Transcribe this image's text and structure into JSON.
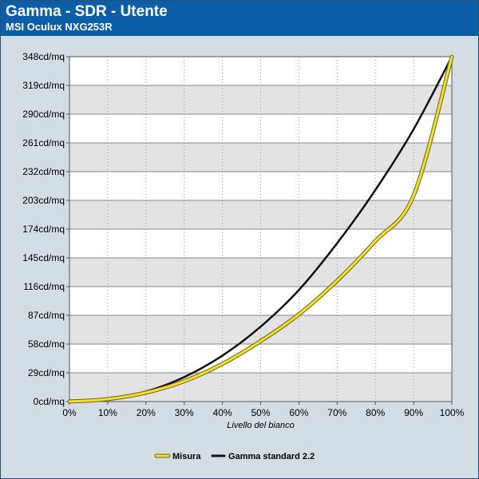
{
  "header": {
    "title": "Gamma - SDR - Utente",
    "subtitle": "MSI Oculux NXG253R"
  },
  "colors": {
    "header_bg": "#0b5fa8",
    "plot_bg": "#ffffff",
    "band": "#e3e3e3",
    "measured": "#f2e02b",
    "reference": "#111111"
  },
  "chart_data": {
    "type": "line",
    "title": "Gamma - SDR - Utente",
    "subtitle": "MSI Oculux NXG253R",
    "xlabel": "Livello del bianco",
    "ylabel": "",
    "xlim": [
      0,
      100
    ],
    "ylim": [
      0,
      348
    ],
    "x_ticks": [
      "0%",
      "10%",
      "20%",
      "30%",
      "40%",
      "50%",
      "60%",
      "70%",
      "80%",
      "90%",
      "100%"
    ],
    "y_ticks": [
      "0cd/mq",
      "29cd/mq",
      "58cd/mq",
      "87cd/mq",
      "116cd/mq",
      "145cd/mq",
      "174cd/mq",
      "203cd/mq",
      "232cd/mq",
      "261cd/mq",
      "290cd/mq",
      "319cd/mq",
      "348cd/mq"
    ],
    "grid": true,
    "legend_position": "bottom-center",
    "x": [
      0,
      10,
      20,
      30,
      40,
      50,
      60,
      70,
      80,
      90,
      100
    ],
    "series": [
      {
        "name": "Misura",
        "color": "#f2e02b",
        "values": [
          0,
          2.5,
          9,
          20.5,
          38,
          61,
          88,
          122,
          162,
          208,
          348
        ]
      },
      {
        "name": "Gamma standard 2.2",
        "color": "#111111",
        "values": [
          0,
          2.2,
          10.1,
          24.7,
          46.4,
          75.6,
          112.6,
          159.8,
          213.5,
          274.8,
          348
        ]
      }
    ]
  }
}
